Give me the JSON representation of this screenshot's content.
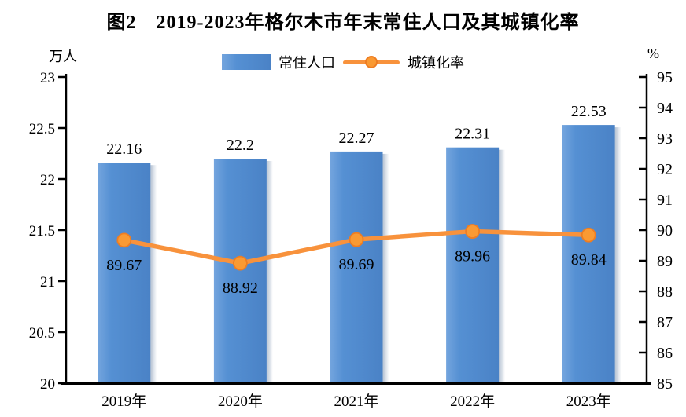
{
  "title": "图2　2019-2023年格尔木市年末常住人口及其城镇化率",
  "legend": {
    "bar_label": "常住人口",
    "line_label": "城镇化率"
  },
  "chart_data": {
    "type": "bar",
    "title": "图2　2019-2023年格尔木市年末常住人口及其城镇化率",
    "categories": [
      "2019年",
      "2020年",
      "2021年",
      "2022年",
      "2023年"
    ],
    "series": [
      {
        "name": "常住人口",
        "type": "bar",
        "axis": "left",
        "values": [
          22.16,
          22.2,
          22.27,
          22.31,
          22.53
        ]
      },
      {
        "name": "城镇化率",
        "type": "line",
        "axis": "right",
        "values": [
          89.67,
          88.92,
          89.69,
          89.96,
          89.84
        ]
      }
    ],
    "left_axis": {
      "label": "万人",
      "min": 20,
      "max": 23,
      "step": 0.5,
      "ticks": [
        "20",
        "20.5",
        "21",
        "21.5",
        "22",
        "22.5",
        "23"
      ]
    },
    "right_axis": {
      "label": "%",
      "min": 85,
      "max": 95,
      "step": 1,
      "ticks": [
        "85",
        "86",
        "87",
        "88",
        "89",
        "90",
        "91",
        "92",
        "93",
        "94",
        "95"
      ]
    },
    "legend_position": "top",
    "grid": false,
    "colors": {
      "bar_light": "#74a5de",
      "bar_mid": "#5590d3",
      "bar_dark": "#4a82c6",
      "bar_shadow": "#46668f",
      "line": "#f8923c",
      "marker_fill": "#fa9a33",
      "marker_stroke": "#ee7d22",
      "axis": "#000000"
    }
  }
}
